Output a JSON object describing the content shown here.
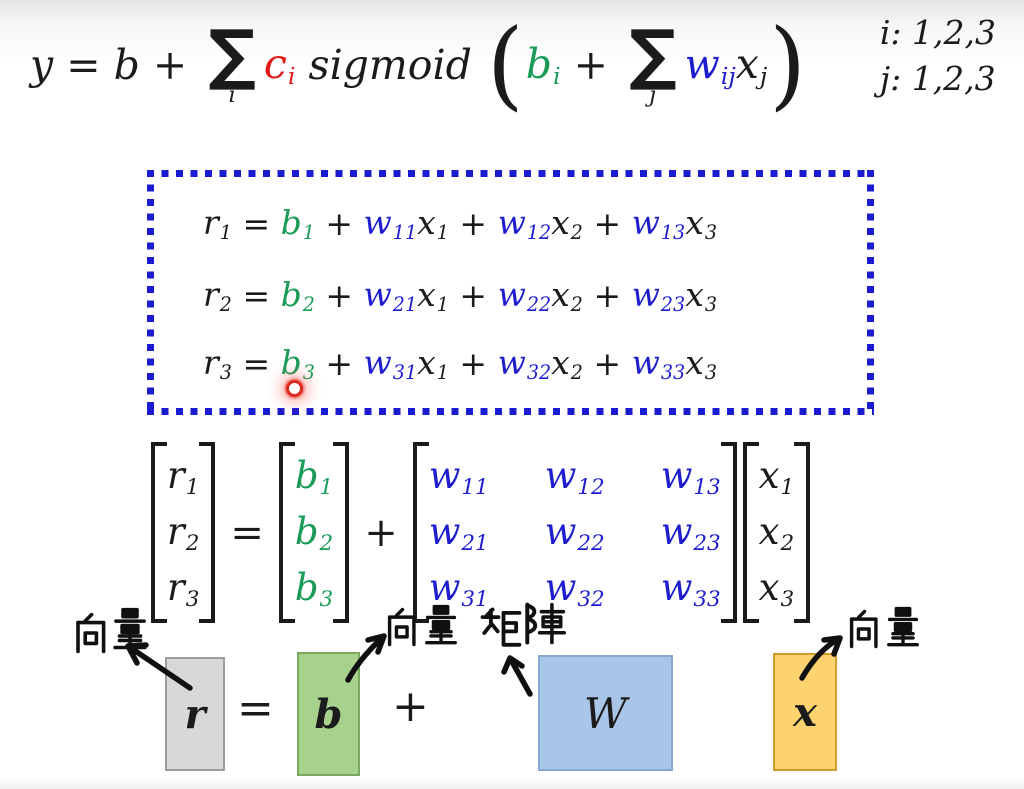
{
  "colors": {
    "ink": "#1b1b1b",
    "red": "#e01a16",
    "green": "#1a9c58",
    "blue": "#1d1dce",
    "box_border": "#1b1bd0",
    "laser": "#d92b22"
  },
  "top_formula": {
    "segments": [
      {
        "t": "y = b + "
      },
      {
        "t": "∑",
        "sum": "i"
      },
      {
        "t": "c",
        "s": "i",
        "c": "red"
      },
      {
        "t": " sigmoid "
      },
      {
        "paren": "("
      },
      {
        "t": "b",
        "s": "i",
        "c": "green"
      },
      {
        "t": " + "
      },
      {
        "t": "∑",
        "sum": "j"
      },
      {
        "t": "w",
        "s": "ij",
        "c": "blue"
      },
      {
        "t": "x",
        "s": "j"
      },
      {
        "paren": ")"
      }
    ],
    "index_note_i": "i: 1,2,3",
    "index_note_j": "j: 1,2,3"
  },
  "boxed_equations": {
    "eq1": [
      {
        "t": "r",
        "s": "1"
      },
      {
        "t": " = "
      },
      {
        "t": "b",
        "s": "1",
        "c": "green"
      },
      {
        "t": " + "
      },
      {
        "t": "w",
        "s": "11",
        "c": "blue"
      },
      {
        "t": "x",
        "s": "1"
      },
      {
        "t": " + "
      },
      {
        "t": "w",
        "s": "12",
        "c": "blue"
      },
      {
        "t": "x",
        "s": "2"
      },
      {
        "t": " + "
      },
      {
        "t": "w",
        "s": "13",
        "c": "blue"
      },
      {
        "t": "x",
        "s": "3"
      }
    ],
    "eq2": [
      {
        "t": "r",
        "s": "2"
      },
      {
        "t": " = "
      },
      {
        "t": "b",
        "s": "2",
        "c": "green"
      },
      {
        "t": " + "
      },
      {
        "t": "w",
        "s": "21",
        "c": "blue"
      },
      {
        "t": "x",
        "s": "1"
      },
      {
        "t": " + "
      },
      {
        "t": "w",
        "s": "22",
        "c": "blue"
      },
      {
        "t": "x",
        "s": "2"
      },
      {
        "t": " + "
      },
      {
        "t": "w",
        "s": "23",
        "c": "blue"
      },
      {
        "t": "x",
        "s": "3"
      }
    ],
    "eq3": [
      {
        "t": "r",
        "s": "3"
      },
      {
        "t": " = "
      },
      {
        "t": "b",
        "s": "3",
        "c": "green"
      },
      {
        "t": " + "
      },
      {
        "t": "w",
        "s": "31",
        "c": "blue"
      },
      {
        "t": "x",
        "s": "1"
      },
      {
        "t": " + "
      },
      {
        "t": "w",
        "s": "32",
        "c": "blue"
      },
      {
        "t": "x",
        "s": "2"
      },
      {
        "t": " + "
      },
      {
        "t": "w",
        "s": "33",
        "c": "blue"
      },
      {
        "t": "x",
        "s": "3"
      }
    ]
  },
  "matrix_equation": {
    "r_vector": [
      {
        "t": "r",
        "s": "1"
      },
      {
        "t": "r",
        "s": "2"
      },
      {
        "t": "r",
        "s": "3"
      }
    ],
    "equals": "=",
    "b_vector": [
      {
        "t": "b",
        "s": "1",
        "c": "green"
      },
      {
        "t": "b",
        "s": "2",
        "c": "green"
      },
      {
        "t": "b",
        "s": "3",
        "c": "green"
      }
    ],
    "plus": "+",
    "w_matrix": [
      {
        "t": "w",
        "s": "11",
        "c": "blue"
      },
      {
        "t": "w",
        "s": "12",
        "c": "blue"
      },
      {
        "t": "w",
        "s": "13",
        "c": "blue"
      },
      {
        "t": "w",
        "s": "21",
        "c": "blue"
      },
      {
        "t": "w",
        "s": "22",
        "c": "blue"
      },
      {
        "t": "w",
        "s": "23",
        "c": "blue"
      },
      {
        "t": "w",
        "s": "31",
        "c": "blue"
      },
      {
        "t": "w",
        "s": "32",
        "c": "blue"
      },
      {
        "t": "w",
        "s": "33",
        "c": "blue"
      }
    ],
    "x_vector": [
      {
        "t": "x",
        "s": "1"
      },
      {
        "t": "x",
        "s": "2"
      },
      {
        "t": "x",
        "s": "3"
      }
    ]
  },
  "block_diagram": {
    "r_label": "r",
    "equals": "=",
    "b_label": "b",
    "plus": "+",
    "w_label": "W",
    "x_label": "x",
    "colors": {
      "r": "#d8d8d8",
      "b": "#a9d18e",
      "w": "#a9c6e8",
      "x": "#fcd36e"
    }
  },
  "annotations": [
    {
      "text": "向量"
    },
    {
      "text": "向量"
    },
    {
      "text": "矩陣"
    },
    {
      "text": "向量"
    }
  ]
}
